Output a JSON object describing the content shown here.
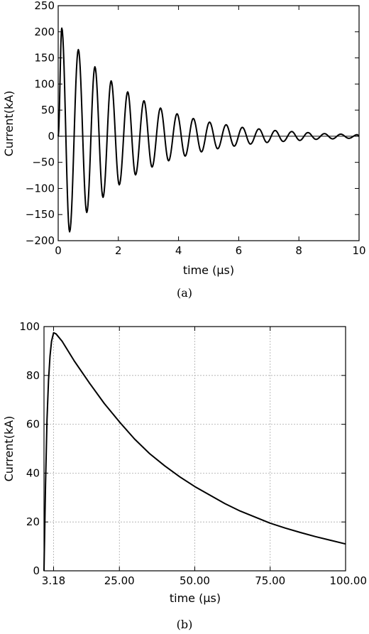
{
  "chart_data": [
    {
      "type": "line",
      "caption": "(a)",
      "xlabel": "time (μs)",
      "ylabel": "Current(kA)",
      "xlim": [
        0,
        10
      ],
      "ylim": [
        -200,
        250
      ],
      "xticks": [
        0,
        2,
        4,
        6,
        8,
        10
      ],
      "xtick_labels": [
        "0",
        "2",
        "4",
        "6",
        "8",
        "10"
      ],
      "yticks": [
        -200,
        -150,
        -100,
        -50,
        0,
        50,
        100,
        150,
        200,
        250
      ],
      "ytick_labels": [
        "−200",
        "−150",
        "−100",
        "−50",
        "0",
        "50",
        "100",
        "150",
        "200",
        "250"
      ],
      "grid": false,
      "zero_line": true,
      "series": [
        {
          "description_function": "damped oscillation",
          "peaks": [
            {
              "x": 0.12,
              "y": 207
            },
            {
              "x": 0.38,
              "y": -183
            },
            {
              "x": 0.67,
              "y": 166
            },
            {
              "x": 0.95,
              "y": -146
            },
            {
              "x": 1.22,
              "y": 133
            },
            {
              "x": 1.49,
              "y": -117
            },
            {
              "x": 1.76,
              "y": 106
            },
            {
              "x": 2.03,
              "y": -93
            },
            {
              "x": 2.31,
              "y": 85
            },
            {
              "x": 2.57,
              "y": -74
            },
            {
              "x": 2.85,
              "y": 68
            },
            {
              "x": 3.12,
              "y": -59
            },
            {
              "x": 3.4,
              "y": 54
            },
            {
              "x": 3.67,
              "y": -47
            },
            {
              "x": 3.95,
              "y": 43
            },
            {
              "x": 4.22,
              "y": -38
            },
            {
              "x": 4.49,
              "y": 34
            },
            {
              "x": 4.76,
              "y": -30
            },
            {
              "x": 5.03,
              "y": 27
            },
            {
              "x": 5.3,
              "y": -24
            },
            {
              "x": 5.58,
              "y": 22
            },
            {
              "x": 5.85,
              "y": -19
            },
            {
              "x": 6.12,
              "y": 17
            },
            {
              "x": 6.39,
              "y": -15
            },
            {
              "x": 6.67,
              "y": 14
            },
            {
              "x": 6.94,
              "y": -12
            },
            {
              "x": 7.21,
              "y": 11
            },
            {
              "x": 7.48,
              "y": -10
            },
            {
              "x": 7.76,
              "y": 9
            },
            {
              "x": 8.03,
              "y": -8
            },
            {
              "x": 8.3,
              "y": 7
            },
            {
              "x": 8.57,
              "y": -6
            },
            {
              "x": 8.85,
              "y": 5
            },
            {
              "x": 9.12,
              "y": -5
            },
            {
              "x": 9.39,
              "y": 4
            },
            {
              "x": 9.66,
              "y": -4
            },
            {
              "x": 9.94,
              "y": 3
            }
          ]
        }
      ]
    },
    {
      "type": "line",
      "caption": "(b)",
      "xlabel": "time (μs)",
      "ylabel": "Current(kA)",
      "xlim": [
        0,
        100
      ],
      "ylim": [
        0,
        100
      ],
      "xticks": [
        3.18,
        25,
        50,
        75,
        100
      ],
      "xtick_labels": [
        "3.18",
        "25.00",
        "50.00",
        "75.00",
        "100.00"
      ],
      "yticks": [
        0,
        20,
        40,
        60,
        80,
        100
      ],
      "ytick_labels": [
        "0",
        "20",
        "40",
        "60",
        "80",
        "100"
      ],
      "grid": true,
      "series": [
        {
          "points": [
            {
              "x": 0,
              "y": 0
            },
            {
              "x": 0.5,
              "y": 35
            },
            {
              "x": 1,
              "y": 62
            },
            {
              "x": 1.5,
              "y": 78
            },
            {
              "x": 2,
              "y": 88
            },
            {
              "x": 2.5,
              "y": 94
            },
            {
              "x": 3.18,
              "y": 97.5
            },
            {
              "x": 4,
              "y": 97
            },
            {
              "x": 6,
              "y": 94
            },
            {
              "x": 10,
              "y": 86
            },
            {
              "x": 15,
              "y": 77
            },
            {
              "x": 20,
              "y": 68.5
            },
            {
              "x": 25,
              "y": 61
            },
            {
              "x": 30,
              "y": 54
            },
            {
              "x": 35,
              "y": 48
            },
            {
              "x": 40,
              "y": 43
            },
            {
              "x": 45,
              "y": 38.5
            },
            {
              "x": 50,
              "y": 34.5
            },
            {
              "x": 55,
              "y": 31
            },
            {
              "x": 60,
              "y": 27.5
            },
            {
              "x": 65,
              "y": 24.5
            },
            {
              "x": 70,
              "y": 22
            },
            {
              "x": 75,
              "y": 19.5
            },
            {
              "x": 80,
              "y": 17.5
            },
            {
              "x": 85,
              "y": 15.7
            },
            {
              "x": 90,
              "y": 14
            },
            {
              "x": 95,
              "y": 12.5
            },
            {
              "x": 100,
              "y": 11
            }
          ]
        }
      ]
    }
  ]
}
